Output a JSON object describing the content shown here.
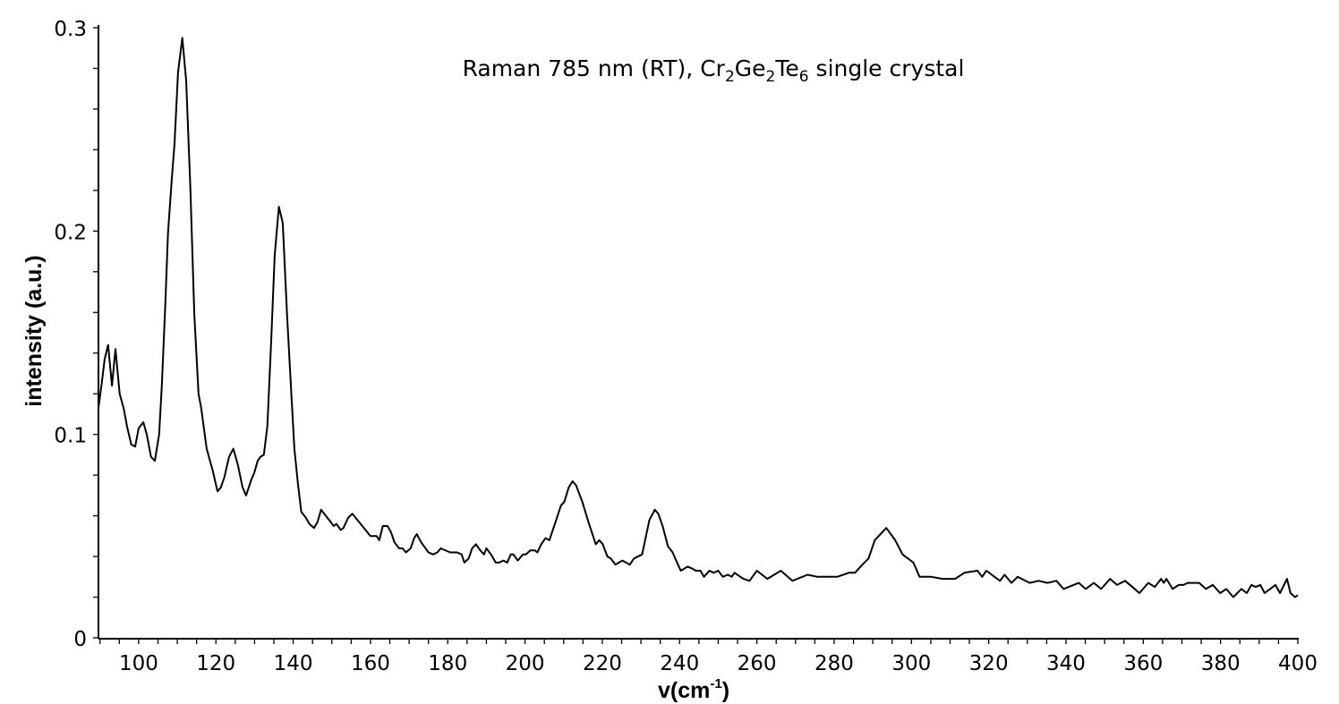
{
  "chart_data": {
    "type": "line",
    "title": {
      "parts": [
        {
          "text": "Raman 785 nm (RT), Cr",
          "sub": false
        },
        {
          "text": "2",
          "sub": true
        },
        {
          "text": "Ge",
          "sub": false
        },
        {
          "text": "2",
          "sub": true
        },
        {
          "text": "Te",
          "sub": false
        },
        {
          "text": "6",
          "sub": true
        },
        {
          "text": " single crystal",
          "sub": false
        }
      ]
    },
    "xlabel": {
      "base": "v(cm",
      "sup": "-1",
      "close": ")"
    },
    "ylabel": "intensity (a.u.)",
    "xlim": [
      89.6,
      400
    ],
    "ylim": [
      0,
      0.3
    ],
    "xticks": [
      "100",
      "120",
      "140",
      "160",
      "180",
      "200",
      "220",
      "240",
      "260",
      "280",
      "300",
      "320",
      "340",
      "360",
      "380",
      "400"
    ],
    "yticks": [
      "0",
      "0.1",
      "0.2",
      "0.3"
    ],
    "x_minor_step": 5,
    "y_minor_step": 0.02,
    "grid": false,
    "line_color": "#000000",
    "series": [
      {
        "x": [
          89.6,
          90.5,
          91.2,
          92.1,
          93.1,
          94.0,
          95.1,
          96.1,
          97.0,
          98.1,
          99.1,
          100,
          101.2,
          102.1,
          103.2,
          104.2,
          105.3,
          106.0,
          106.9,
          107.6,
          108.6,
          109.3,
          110.2,
          111.3,
          112.3,
          113.4,
          114.4,
          115.5,
          116.2,
          117.6,
          119.2,
          120.4,
          121.3,
          122.2,
          123.4,
          124.5,
          125.7,
          126.9,
          127.8,
          129.2,
          129.9,
          130.8,
          131.5,
          132.4,
          133.3,
          134.3,
          135.2,
          136.3,
          137.3,
          138.4,
          139.4,
          140.3,
          141.2,
          142.1,
          143.3,
          144.2,
          145.4,
          146.3,
          147.2,
          150.5,
          151.2,
          152.3,
          153.0,
          154.2,
          155.3,
          160.0,
          161.6,
          162.3,
          163.2,
          164.4,
          165.3,
          166.2,
          167.4,
          168.3,
          169.2,
          170.4,
          171.3,
          172.0,
          173.1,
          175.0,
          176.2,
          177.3,
          178.2,
          180.6,
          181.3,
          182.4,
          183.6,
          184.3,
          185.4,
          186.3,
          187.3,
          188.4,
          189.4,
          190.0,
          191.2,
          192.4,
          193.3,
          194.4,
          195.4,
          196.3,
          197.0,
          198.1,
          199.5,
          200.2,
          201.4,
          202.5,
          203.2,
          204.2,
          205.3,
          206.3,
          207.9,
          209.3,
          210.2,
          211.3,
          212.3,
          213.2,
          214.8,
          216.4,
          218.3,
          219.2,
          220.1,
          221.3,
          222.2,
          223.4,
          225.2,
          227.1,
          228.2,
          230.3,
          232.2,
          233.6,
          234.5,
          235.6,
          237.0,
          238.2,
          239.1,
          240.3,
          242.1,
          243.3,
          244.2,
          245.4,
          246.3,
          247.7,
          248.8,
          250.0,
          251.2,
          252.5,
          253.5,
          254.2,
          256.5,
          258.1,
          260.0,
          262.7,
          266.2,
          269.2,
          273.1,
          275.7,
          278.9,
          280.8,
          283.8,
          285.4,
          287.3,
          288.9,
          290.5,
          293.5,
          295.8,
          297.7,
          300.5,
          302.1,
          305.1,
          308.1,
          311.3,
          313.7,
          317.1,
          318.3,
          319.4,
          322.9,
          324.1,
          325.9,
          327.5,
          330.6,
          332.9,
          335.2,
          337.5,
          339.4,
          343.3,
          345.1,
          347.2,
          349.1,
          351.4,
          353.2,
          355.3,
          357.2,
          359.0,
          361.3,
          363.0,
          364.6,
          365.3,
          366.0,
          367.6,
          369.2,
          370.4,
          371.5,
          374.5,
          376.2,
          378.0,
          379.9,
          381.5,
          383.3,
          385.4,
          386.8,
          388.0,
          389.1,
          390.3,
          391.4,
          394.2,
          395.4,
          397.2,
          398.1,
          399.3,
          400
        ],
        "y": [
          0.113,
          0.126,
          0.137,
          0.144,
          0.124,
          0.142,
          0.12,
          0.113,
          0.104,
          0.095,
          0.094,
          0.103,
          0.106,
          0.1,
          0.089,
          0.087,
          0.1,
          0.124,
          0.164,
          0.199,
          0.226,
          0.243,
          0.278,
          0.295,
          0.274,
          0.221,
          0.159,
          0.12,
          0.113,
          0.093,
          0.082,
          0.072,
          0.074,
          0.079,
          0.089,
          0.093,
          0.085,
          0.074,
          0.07,
          0.078,
          0.081,
          0.087,
          0.089,
          0.09,
          0.104,
          0.146,
          0.188,
          0.212,
          0.204,
          0.159,
          0.124,
          0.093,
          0.076,
          0.062,
          0.059,
          0.056,
          0.054,
          0.057,
          0.063,
          0.055,
          0.056,
          0.053,
          0.054,
          0.059,
          0.061,
          0.05,
          0.05,
          0.048,
          0.055,
          0.055,
          0.052,
          0.047,
          0.044,
          0.044,
          0.042,
          0.044,
          0.049,
          0.051,
          0.047,
          0.042,
          0.041,
          0.042,
          0.044,
          0.042,
          0.042,
          0.042,
          0.041,
          0.037,
          0.039,
          0.044,
          0.046,
          0.043,
          0.041,
          0.044,
          0.041,
          0.037,
          0.037,
          0.038,
          0.037,
          0.041,
          0.041,
          0.038,
          0.041,
          0.041,
          0.043,
          0.043,
          0.042,
          0.046,
          0.049,
          0.048,
          0.057,
          0.065,
          0.067,
          0.074,
          0.077,
          0.075,
          0.067,
          0.057,
          0.046,
          0.048,
          0.046,
          0.04,
          0.039,
          0.036,
          0.038,
          0.036,
          0.039,
          0.041,
          0.058,
          0.063,
          0.061,
          0.055,
          0.045,
          0.042,
          0.038,
          0.033,
          0.035,
          0.034,
          0.033,
          0.033,
          0.03,
          0.033,
          0.032,
          0.033,
          0.03,
          0.031,
          0.03,
          0.032,
          0.029,
          0.028,
          0.033,
          0.029,
          0.033,
          0.028,
          0.031,
          0.03,
          0.03,
          0.03,
          0.032,
          0.032,
          0.036,
          0.039,
          0.048,
          0.054,
          0.048,
          0.041,
          0.037,
          0.03,
          0.03,
          0.029,
          0.029,
          0.032,
          0.033,
          0.03,
          0.033,
          0.028,
          0.031,
          0.027,
          0.03,
          0.027,
          0.028,
          0.027,
          0.028,
          0.024,
          0.027,
          0.024,
          0.027,
          0.024,
          0.029,
          0.026,
          0.028,
          0.025,
          0.022,
          0.027,
          0.025,
          0.029,
          0.027,
          0.029,
          0.024,
          0.026,
          0.026,
          0.027,
          0.027,
          0.024,
          0.026,
          0.022,
          0.024,
          0.02,
          0.024,
          0.022,
          0.026,
          0.025,
          0.026,
          0.022,
          0.026,
          0.022,
          0.029,
          0.022,
          0.02,
          0.021
        ]
      }
    ]
  }
}
